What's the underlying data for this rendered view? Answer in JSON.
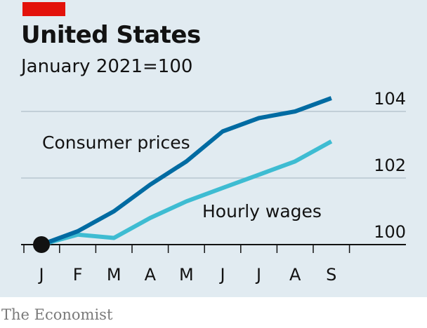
{
  "header": {
    "title": "United States",
    "subtitle": "January 2021=100"
  },
  "footer": {
    "source": "The Economist"
  },
  "colors": {
    "tag": "#e3120b",
    "background": "#e1ebf1",
    "consumer_prices": "#006ba2",
    "hourly_wages": "#3ebcd2",
    "grid": "#b7c6cf",
    "axis": "#121212"
  },
  "chart_data": {
    "type": "line",
    "categories": [
      "J",
      "F",
      "M",
      "A",
      "M",
      "J",
      "J",
      "A",
      "S"
    ],
    "ylim": [
      100,
      104.5
    ],
    "yticks": [
      "100",
      "102",
      "104"
    ],
    "grid": true,
    "series": [
      {
        "name": "Consumer prices",
        "color": "#006ba2",
        "values": [
          100.0,
          100.4,
          101.0,
          101.8,
          102.5,
          103.4,
          103.8,
          104.0,
          104.4
        ]
      },
      {
        "name": "Hourly wages",
        "color": "#3ebcd2",
        "values": [
          100.0,
          100.3,
          100.2,
          100.8,
          101.3,
          101.7,
          102.1,
          102.5,
          103.1
        ]
      }
    ]
  }
}
